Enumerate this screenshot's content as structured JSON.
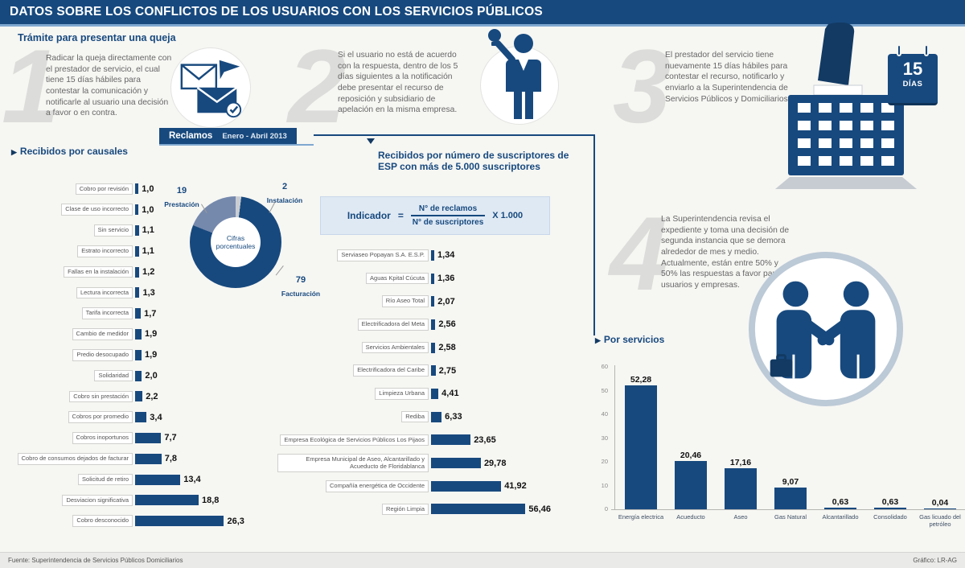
{
  "colors": {
    "navy": "#17497e",
    "dark_navy": "#123a63",
    "medium_blue": "#7589ad",
    "light_gray_slice": "#c9cdd3",
    "accent_blue": "#7fa8d0"
  },
  "icons": {
    "section_marker": "▶"
  },
  "header": {
    "title": "DATOS SOBRE LOS CONFLICTOS DE LOS USUARIOS CON LOS SERVICIOS PÚBLICOS"
  },
  "intro": {
    "subtitle": "Trámite para presentar una queja"
  },
  "steps": [
    {
      "number": "1",
      "text": "Radicar la queja directamente con el prestador de servicio, el cual tiene 15 días hábiles para contestar la comunicación y notificarle al usuario una decisión a favor o en contra."
    },
    {
      "number": "2",
      "text": "Si el usuario no está de acuerdo con la respuesta, dentro de los 5 días siguientes a la notificación debe presentar el recurso de reposición y subsidiario de apelación en la misma empresa."
    },
    {
      "number": "3",
      "text": "El prestador del servicio tiene nuevamente 15 días hábiles para contestar el recurso, notificarlo y enviarlo a la Superintendencia de Servicios Públicos y Domiciliarios."
    },
    {
      "number": "4",
      "text": "La Superintendencia revisa el expediente y toma una decisión de segunda instancia que se demora alrededor de mes y medio. Actualmente, están entre 50% y 50% las respuestas a favor para los usuarios y empresas."
    }
  ],
  "calendar": {
    "days": "15",
    "label": "DÍAS"
  },
  "banner": {
    "label": "Reclamos",
    "period": "Enero - Abril 2013"
  },
  "sections": {
    "causales": "Recibidos por causales",
    "suscriptores": "Recibidos por número de suscriptores de ESP con más de 5.000 suscriptores",
    "servicios": "Por servicios"
  },
  "indicator": {
    "label": "Indicador",
    "equals": "=",
    "numerator": "N° de reclamos",
    "denominator": "N° de suscriptores",
    "multiplier": "X 1.000"
  },
  "chart_data": [
    {
      "type": "bar",
      "orientation": "horizontal",
      "title": "Recibidos por causales",
      "categories": [
        "Cobro por revisión",
        "Clase de uso incorrecto",
        "Sin servicio",
        "Estrato incorrecto",
        "Fallas en la instalación",
        "Lectura incorrecta",
        "Tarifa incorrecta",
        "Cambio de medidor",
        "Predio desocupado",
        "Solidaridad",
        "Cobro sin prestación",
        "Cobros por promedio",
        "Cobros inoportunos",
        "Cobro de consumos dejados de facturar",
        "Solicitud de retiro",
        "Desviacion significativa",
        "Cobro desconocido"
      ],
      "values": [
        1.0,
        1.0,
        1.1,
        1.1,
        1.2,
        1.3,
        1.7,
        1.9,
        1.9,
        2.0,
        2.2,
        3.4,
        7.7,
        7.8,
        13.4,
        18.8,
        26.3
      ],
      "labels": [
        "1,0",
        "1,0",
        "1,1",
        "1,1",
        "1,2",
        "1,3",
        "1,7",
        "1,9",
        "1,9",
        "2,0",
        "2,2",
        "3,4",
        "7,7",
        "7,8",
        "13,4",
        "18,8",
        "26,3"
      ],
      "xlim": [
        0,
        30
      ]
    },
    {
      "type": "pie",
      "title": "Cifras porcentuales",
      "center_label": "Cifras porcentuales",
      "slices": [
        {
          "label": "Instalación",
          "value": 2,
          "color": "#c9cdd3"
        },
        {
          "label": "Facturación",
          "value": 79,
          "color": "#17497e"
        },
        {
          "label": "Prestación",
          "value": 19,
          "color": "#7589ad"
        }
      ]
    },
    {
      "type": "bar",
      "orientation": "horizontal",
      "title": "Recibidos por número de suscriptores de ESP con más de 5.000 suscriptores",
      "categories": [
        "Serviaseo Popayan S.A. E.S.P.",
        "Aguas Kpital Cúcuta",
        "Río Aseo Total",
        "Electrificadora del Meta",
        "Servicios Ambientales",
        "Electrificadora del Caribe",
        "Limpieza Urbana",
        "Rediba",
        "Empresa Ecológica de Servicios Públicos Los Pijaos",
        "Empresa Municipal de Aseo, Alcantarillado y Acueducto de Floridablanca",
        "Compañía energética de Occidente",
        "Región Limpia"
      ],
      "values": [
        1.34,
        1.36,
        2.07,
        2.56,
        2.58,
        2.75,
        4.41,
        6.33,
        23.65,
        29.78,
        41.92,
        56.46
      ],
      "labels": [
        "1,34",
        "1,36",
        "2,07",
        "2,56",
        "2,58",
        "2,75",
        "4,41",
        "6,33",
        "23,65",
        "29,78",
        "41,92",
        "56,46"
      ],
      "xlim": [
        0,
        60
      ]
    },
    {
      "type": "bar",
      "orientation": "vertical",
      "title": "Por servicios",
      "categories": [
        "Energía electrica",
        "Acueducto",
        "Aseo",
        "Gas Natural",
        "Alcantarillado",
        "Consolidado",
        "Gas licuado del petróleo"
      ],
      "values": [
        52.28,
        20.46,
        17.16,
        9.07,
        0.63,
        0.63,
        0.04
      ],
      "labels": [
        "52,28",
        "20,46",
        "17,16",
        "9,07",
        "0,63",
        "0,63",
        "0,04"
      ],
      "yticks": [
        0,
        10,
        20,
        30,
        40,
        50,
        60
      ],
      "ylim": [
        0,
        60
      ]
    }
  ],
  "footer": {
    "source": "Fuente: Superintendencia de Servicios Públicos Domiciliarios",
    "credit": "Gráfico: LR-AG"
  }
}
